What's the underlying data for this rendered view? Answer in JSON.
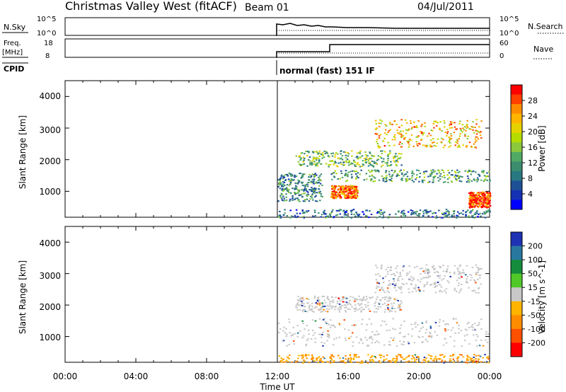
{
  "header": {
    "station": "Christmas Valley West (fitACF)",
    "beam": "Beam 01",
    "date": "04/Jul/2011"
  },
  "strips": {
    "nsky_label": "N.Sky",
    "nsky_ticks": [
      "10^5",
      "10^0"
    ],
    "nsearch_label": "N.Search",
    "nsearch_ticks": [
      "10^5",
      "10^0"
    ],
    "freq_label_1": "Freq.",
    "freq_label_2": "[MHz]",
    "freq_ticks": [
      "18",
      "8"
    ],
    "nave_label": "Nave",
    "nave_ticks": [
      "60",
      "0"
    ],
    "cpid_label": "CPID",
    "cpid_text": "normal (fast) 151 IF"
  },
  "x_axis": {
    "title": "Time UT",
    "ticks": [
      "00:00",
      "04:00",
      "08:00",
      "12:00",
      "16:00",
      "20:00",
      "00:00"
    ]
  },
  "power_colorbar": {
    "title": "Power [dB]",
    "ticks": [
      "28",
      "24",
      "20",
      "16",
      "12",
      "8",
      "4"
    ],
    "colors": [
      "#ff0000",
      "#ff4000",
      "#ff8c00",
      "#ffb400",
      "#e6d200",
      "#b4dc00",
      "#8cc83c",
      "#50aa64",
      "#3c8c6e",
      "#287882",
      "#1e5096",
      "#1432b4",
      "#0000ff"
    ]
  },
  "velocity_colorbar": {
    "title": "Velocity [m s^-1]",
    "ticks": [
      "200",
      "100",
      "50",
      "15",
      "-15",
      "-50",
      "-100",
      "-200"
    ],
    "colors": [
      "#1e32b4",
      "#2878a0",
      "#148c3c",
      "#50c828",
      "#c8c8c8",
      "#ffb400",
      "#ff8c00",
      "#ff5000",
      "#ff0000"
    ]
  },
  "chart_data": [
    {
      "type": "heatmap",
      "name": "power",
      "ylabel": "Slant Range [km]",
      "yticks": [
        "1000",
        "2000",
        "3000",
        "4000"
      ],
      "ylim": [
        180,
        4500
      ],
      "xlim_hours": [
        0,
        24
      ],
      "data_start_hour": 12,
      "echo_bands": [
        {
          "range_km": [
            180,
            450
          ],
          "hours": [
            12,
            24
          ],
          "power_db": 8
        },
        {
          "range_km": [
            700,
            1600
          ],
          "hours": [
            12,
            14.5
          ],
          "power_db": 10
        },
        {
          "range_km": [
            800,
            1200
          ],
          "hours": [
            15,
            16.5
          ],
          "power_db": 26
        },
        {
          "range_km": [
            1300,
            1700
          ],
          "hours": [
            15,
            24
          ],
          "power_db": 12
        },
        {
          "range_km": [
            1800,
            2300
          ],
          "hours": [
            13,
            19
          ],
          "power_db": 14
        },
        {
          "range_km": [
            2400,
            3300
          ],
          "hours": [
            17.5,
            23.5
          ],
          "power_db": 22
        },
        {
          "range_km": [
            500,
            1000
          ],
          "hours": [
            22.8,
            24
          ],
          "power_db": 28
        }
      ]
    },
    {
      "type": "heatmap",
      "name": "velocity",
      "ylabel": "Slant Range [km]",
      "yticks": [
        "1000",
        "2000",
        "3000",
        "4000"
      ],
      "ylim": [
        180,
        4500
      ],
      "xlim_hours": [
        0,
        24
      ],
      "data_start_hour": 12,
      "echo_bands": [
        {
          "range_km": [
            180,
            450
          ],
          "hours": [
            12,
            24
          ],
          "velocity_ms": -50
        },
        {
          "range_km": [
            700,
            1600
          ],
          "hours": [
            12,
            24
          ],
          "velocity_ms": 0
        },
        {
          "range_km": [
            1800,
            2300
          ],
          "hours": [
            13,
            19
          ],
          "velocity_ms": 0
        },
        {
          "range_km": [
            2400,
            3300
          ],
          "hours": [
            17.5,
            23.5
          ],
          "velocity_ms": 0
        }
      ]
    }
  ]
}
